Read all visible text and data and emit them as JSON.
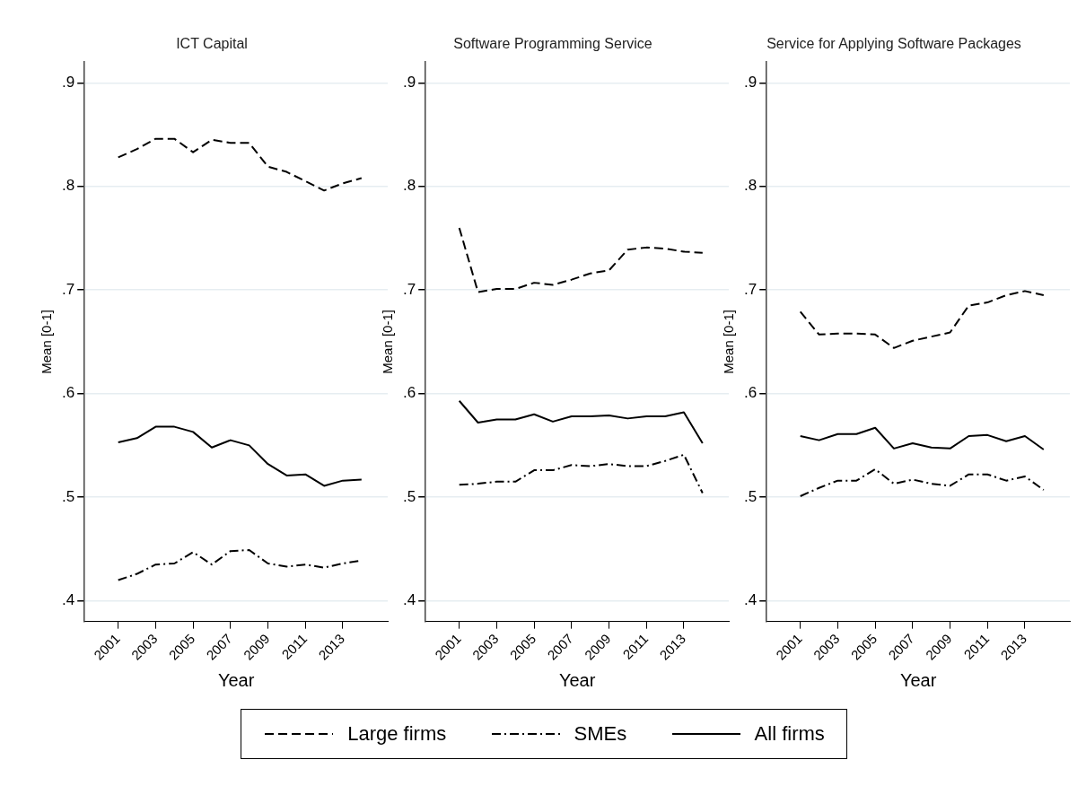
{
  "chart_data": [
    {
      "type": "line",
      "title": "ICT Capital",
      "xlabel": "Year",
      "ylabel": "Mean [0-1]",
      "x": [
        2001,
        2002,
        2003,
        2004,
        2005,
        2006,
        2007,
        2008,
        2009,
        2010,
        2011,
        2012,
        2013,
        2014
      ],
      "xlim": [
        1999.2,
        2015.4
      ],
      "xticks": [
        2001,
        2003,
        2005,
        2007,
        2009,
        2011,
        2013
      ],
      "ylim": [
        0.38,
        0.92
      ],
      "yticks": [
        {
          "value": 0.4,
          "label": ".4"
        },
        {
          "value": 0.5,
          "label": ".5"
        },
        {
          "value": 0.6,
          "label": ".6"
        },
        {
          "value": 0.7,
          "label": ".7"
        },
        {
          "value": 0.8,
          "label": ".8"
        },
        {
          "value": 0.9,
          "label": ".9"
        }
      ],
      "grid": "y",
      "marker": "none",
      "legend": "bottom",
      "series": [
        {
          "name": "Large firms",
          "color": "#000000",
          "line_style": "dashed",
          "values": [
            0.828,
            0.836,
            0.846,
            0.846,
            0.833,
            0.845,
            0.842,
            0.842,
            0.819,
            0.814,
            0.805,
            0.796,
            0.803,
            0.808
          ]
        },
        {
          "name": "SMEs",
          "color": "#000000",
          "line_style": "dashdot",
          "values": [
            0.42,
            0.426,
            0.435,
            0.436,
            0.447,
            0.435,
            0.448,
            0.449,
            0.436,
            0.433,
            0.435,
            0.432,
            0.436,
            0.439
          ]
        },
        {
          "name": "All firms",
          "color": "#000000",
          "line_style": "solid",
          "values": [
            0.553,
            0.557,
            0.568,
            0.568,
            0.563,
            0.548,
            0.555,
            0.55,
            0.532,
            0.521,
            0.522,
            0.511,
            0.516,
            0.517
          ]
        }
      ]
    },
    {
      "type": "line",
      "title": "Software Programming Service",
      "xlabel": "Year",
      "ylabel": "Mean [0-1]",
      "x": [
        2001,
        2002,
        2003,
        2004,
        2005,
        2006,
        2007,
        2008,
        2009,
        2010,
        2011,
        2012,
        2013,
        2014
      ],
      "xlim": [
        1999.2,
        2015.4
      ],
      "xticks": [
        2001,
        2003,
        2005,
        2007,
        2009,
        2011,
        2013
      ],
      "ylim": [
        0.38,
        0.92
      ],
      "yticks": [
        {
          "value": 0.4,
          "label": ".4"
        },
        {
          "value": 0.5,
          "label": ".5"
        },
        {
          "value": 0.6,
          "label": ".6"
        },
        {
          "value": 0.7,
          "label": ".7"
        },
        {
          "value": 0.8,
          "label": ".8"
        },
        {
          "value": 0.9,
          "label": ".9"
        }
      ],
      "grid": "y",
      "marker": "none",
      "series": [
        {
          "color": "#000000",
          "line_style": "dashed",
          "values": [
            0.76,
            0.698,
            0.701,
            0.701,
            0.707,
            0.705,
            0.71,
            0.716,
            0.719,
            0.739,
            0.741,
            0.74,
            0.737,
            0.736
          ]
        },
        {
          "color": "#000000",
          "line_style": "dashdot",
          "values": [
            0.512,
            0.513,
            0.515,
            0.515,
            0.526,
            0.526,
            0.531,
            0.53,
            0.532,
            0.53,
            0.53,
            0.535,
            0.541,
            0.504
          ]
        },
        {
          "color": "#000000",
          "line_style": "solid",
          "values": [
            0.593,
            0.572,
            0.575,
            0.575,
            0.58,
            0.573,
            0.578,
            0.578,
            0.579,
            0.576,
            0.578,
            0.578,
            0.582,
            0.552
          ]
        }
      ]
    },
    {
      "type": "line",
      "title": "Service for Applying Software Packages",
      "xlabel": "Year",
      "ylabel": "Mean [0-1]",
      "x": [
        2001,
        2002,
        2003,
        2004,
        2005,
        2006,
        2007,
        2008,
        2009,
        2010,
        2011,
        2012,
        2013,
        2014
      ],
      "xlim": [
        1999.2,
        2015.4
      ],
      "xticks": [
        2001,
        2003,
        2005,
        2007,
        2009,
        2011,
        2013
      ],
      "ylim": [
        0.38,
        0.92
      ],
      "yticks": [
        {
          "value": 0.4,
          "label": ".4"
        },
        {
          "value": 0.5,
          "label": ".5"
        },
        {
          "value": 0.6,
          "label": ".6"
        },
        {
          "value": 0.7,
          "label": ".7"
        },
        {
          "value": 0.8,
          "label": ".8"
        },
        {
          "value": 0.9,
          "label": ".9"
        }
      ],
      "grid": "y",
      "marker": "none",
      "series": [
        {
          "color": "#000000",
          "line_style": "dashed",
          "values": [
            0.679,
            0.657,
            0.658,
            0.658,
            0.657,
            0.644,
            0.651,
            0.655,
            0.659,
            0.685,
            0.688,
            0.695,
            0.699,
            0.695
          ]
        },
        {
          "color": "#000000",
          "line_style": "dashdot",
          "values": [
            0.501,
            0.509,
            0.516,
            0.516,
            0.527,
            0.513,
            0.517,
            0.513,
            0.511,
            0.522,
            0.522,
            0.516,
            0.52,
            0.507
          ]
        },
        {
          "color": "#000000",
          "line_style": "solid",
          "values": [
            0.559,
            0.555,
            0.561,
            0.561,
            0.567,
            0.547,
            0.552,
            0.548,
            0.547,
            0.559,
            0.56,
            0.554,
            0.559,
            0.546
          ]
        }
      ]
    }
  ]
}
